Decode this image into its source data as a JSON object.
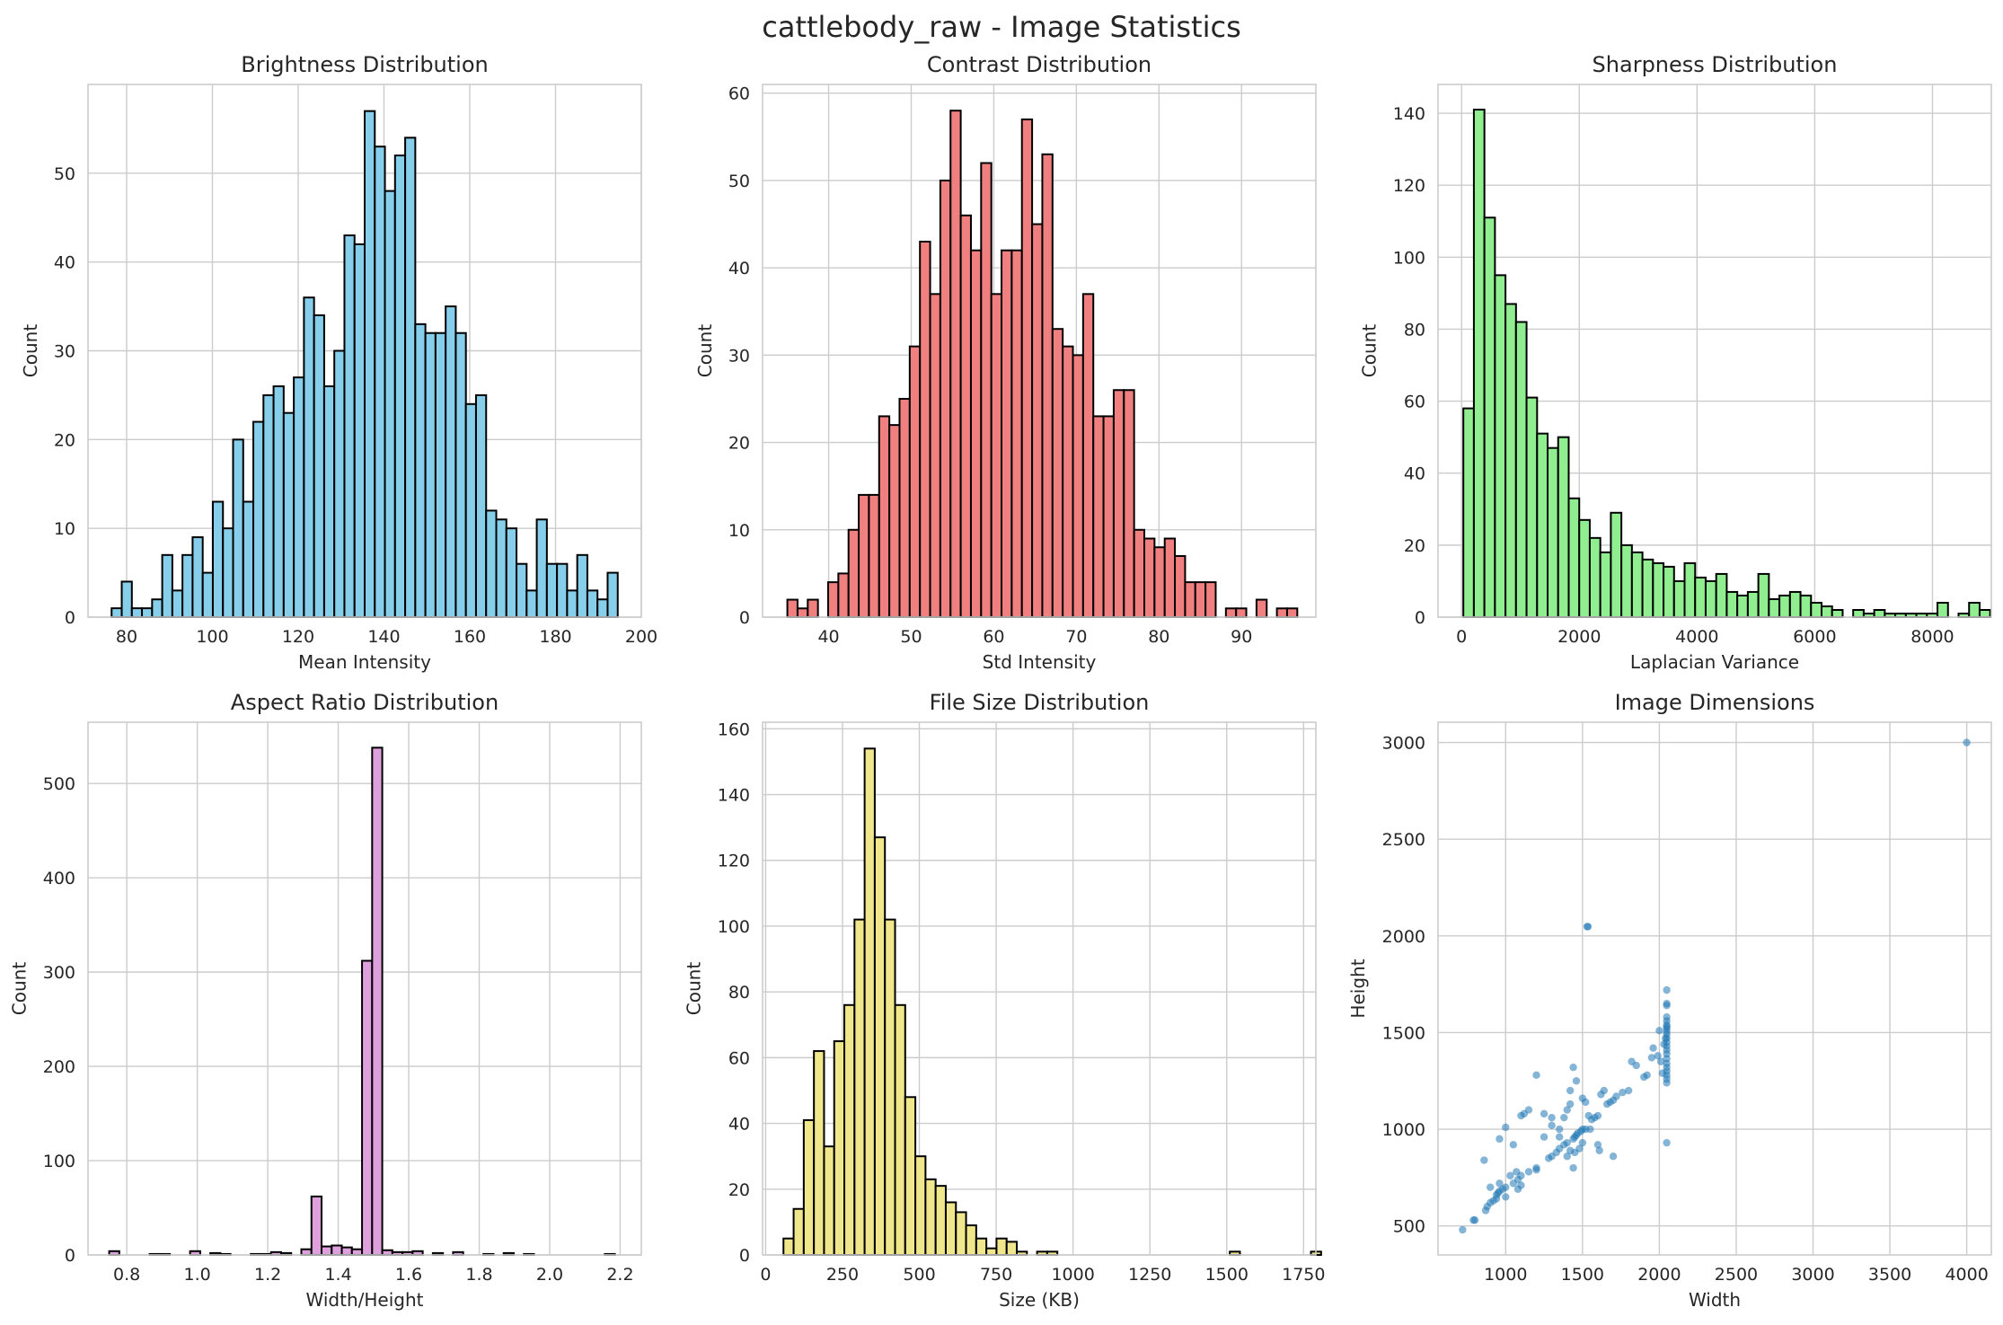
{
  "figure": {
    "title": "cattlebody_raw - Image Statistics"
  },
  "chart_data": [
    {
      "id": "brightness",
      "type": "bar",
      "title": "Brightness Distribution",
      "xlabel": "Mean Intensity",
      "ylabel": "Count",
      "color": "#87ceeb",
      "grid": true,
      "xlim": [
        71,
        200
      ],
      "ylim": [
        0,
        60
      ],
      "xticks": [
        80,
        100,
        120,
        140,
        160,
        180,
        200
      ],
      "yticks": [
        0,
        10,
        20,
        30,
        40,
        50
      ],
      "bin_start": 76.5,
      "bin_width": 2.36,
      "values": [
        1,
        4,
        1,
        1,
        2,
        7,
        3,
        7,
        9,
        5,
        13,
        10,
        20,
        13,
        22,
        25,
        26,
        23,
        27,
        36,
        34,
        26,
        30,
        43,
        42,
        57,
        53,
        48,
        52,
        54,
        33,
        32,
        32,
        35,
        32,
        24,
        25,
        12,
        11,
        10,
        6,
        3,
        11,
        6,
        6,
        3,
        7,
        3,
        2,
        5
      ]
    },
    {
      "id": "contrast",
      "type": "bar",
      "title": "Contrast Distribution",
      "xlabel": "Std Intensity",
      "ylabel": "Count",
      "color": "#f08080",
      "grid": true,
      "xlim": [
        32,
        99
      ],
      "ylim": [
        0,
        61
      ],
      "xticks": [
        40,
        50,
        60,
        70,
        80,
        90
      ],
      "yticks": [
        0,
        10,
        20,
        30,
        40,
        50,
        60
      ],
      "bin_start": 35,
      "bin_width": 1.235,
      "values": [
        2,
        1,
        2,
        0,
        4,
        5,
        10,
        14,
        14,
        23,
        22,
        25,
        31,
        43,
        37,
        50,
        58,
        46,
        42,
        52,
        37,
        42,
        42,
        57,
        45,
        53,
        33,
        31,
        30,
        37,
        23,
        23,
        26,
        26,
        10,
        9,
        8,
        9,
        7,
        4,
        4,
        4,
        0,
        1,
        1,
        0,
        2,
        0,
        1,
        1
      ]
    },
    {
      "id": "sharpness",
      "type": "bar",
      "title": "Sharpness Distribution",
      "xlabel": "Laplacian Variance",
      "ylabel": "Count",
      "color": "#90ee90",
      "grid": true,
      "xlim": [
        -400,
        9000
      ],
      "ylim": [
        0,
        148
      ],
      "xticks": [
        0,
        2000,
        4000,
        6000,
        8000
      ],
      "yticks": [
        0,
        20,
        40,
        60,
        80,
        100,
        120,
        140
      ],
      "bin_start": 30,
      "bin_width": 179,
      "values": [
        58,
        141,
        111,
        95,
        87,
        82,
        61,
        51,
        47,
        50,
        33,
        27,
        22,
        18,
        29,
        20,
        18,
        16,
        15,
        14,
        10,
        15,
        11,
        10,
        12,
        7,
        6,
        7,
        12,
        5,
        6,
        7,
        6,
        4,
        3,
        2,
        0,
        2,
        1,
        2,
        1,
        1,
        1,
        1,
        1,
        4,
        0,
        1,
        4,
        2
      ]
    },
    {
      "id": "aspect",
      "type": "bar",
      "title": "Aspect Ratio Distribution",
      "xlabel": "Width/Height",
      "ylabel": "Count",
      "color": "#dda0dd",
      "grid": true,
      "xlim": [
        0.69,
        2.26
      ],
      "ylim": [
        0,
        565
      ],
      "xticks": [
        0.8,
        1.0,
        1.2,
        1.4,
        1.6,
        1.8,
        2.0,
        2.2
      ],
      "xtick_labels": [
        "0.8",
        "1.0",
        "1.2",
        "1.4",
        "1.6",
        "1.8",
        "2.0",
        "2.2"
      ],
      "yticks": [
        0,
        100,
        200,
        300,
        400,
        500
      ],
      "bin_start": 0.75,
      "bin_width": 0.0287,
      "values": [
        4,
        0,
        0,
        0,
        1,
        1,
        0,
        0,
        4,
        0,
        2,
        1,
        0,
        0,
        1,
        1,
        3,
        2,
        0,
        6,
        62,
        9,
        10,
        8,
        6,
        312,
        538,
        5,
        3,
        3,
        4,
        0,
        2,
        0,
        3,
        0,
        0,
        1,
        0,
        2,
        0,
        1,
        0,
        0,
        0,
        0,
        0,
        0,
        0,
        1
      ]
    },
    {
      "id": "filesize",
      "type": "bar",
      "title": "File Size Distribution",
      "xlabel": "Size (KB)",
      "ylabel": "Count",
      "color": "#f0e68c",
      "grid": true,
      "xlim": [
        -10,
        1790
      ],
      "ylim": [
        0,
        162
      ],
      "xticks": [
        0,
        250,
        500,
        750,
        1000,
        1250,
        1500,
        1750
      ],
      "yticks": [
        0,
        20,
        40,
        60,
        80,
        100,
        120,
        140,
        160
      ],
      "bin_start": 58,
      "bin_width": 33,
      "values": [
        5,
        14,
        41,
        62,
        33,
        65,
        76,
        102,
        154,
        127,
        102,
        76,
        48,
        30,
        23,
        21,
        16,
        13,
        9,
        5,
        2,
        5,
        4,
        1,
        0,
        1,
        1,
        0,
        0,
        0,
        0,
        0,
        0,
        0,
        0,
        0,
        0,
        0,
        0,
        0,
        0,
        0,
        0,
        0,
        1,
        0,
        0,
        0,
        0,
        0,
        0,
        0,
        1
      ]
    },
    {
      "id": "dimensions",
      "type": "scatter",
      "title": "Image Dimensions",
      "xlabel": "Width",
      "ylabel": "Height",
      "color": "#1f77b4",
      "grid": true,
      "xlim": [
        560,
        4160
      ],
      "ylim": [
        350,
        3105
      ],
      "xticks": [
        1000,
        1500,
        2000,
        2500,
        3000,
        3500,
        4000
      ],
      "yticks": [
        500,
        1000,
        1500,
        2000,
        2500,
        3000
      ],
      "points": [
        [
          4000,
          3000
        ],
        [
          1530,
          2048
        ],
        [
          1536,
          2048
        ],
        [
          2048,
          1720
        ],
        [
          2048,
          1650
        ],
        [
          2048,
          1640
        ],
        [
          2048,
          1580
        ],
        [
          2048,
          1560
        ],
        [
          2048,
          1540
        ],
        [
          2048,
          1530
        ],
        [
          2048,
          1520
        ],
        [
          2048,
          1505
        ],
        [
          2048,
          1490
        ],
        [
          2048,
          1470
        ],
        [
          2048,
          1450
        ],
        [
          2048,
          1430
        ],
        [
          2048,
          1410
        ],
        [
          2048,
          1390
        ],
        [
          2048,
          1365
        ],
        [
          2048,
          1340
        ],
        [
          2048,
          1320
        ],
        [
          2048,
          1300
        ],
        [
          2048,
          1280
        ],
        [
          2048,
          1260
        ],
        [
          2048,
          1240
        ],
        [
          2048,
          930
        ],
        [
          2000,
          1510
        ],
        [
          2010,
          1350
        ],
        [
          2020,
          1290
        ],
        [
          2030,
          1440
        ],
        [
          2040,
          1470
        ],
        [
          1960,
          1420
        ],
        [
          1990,
          1380
        ],
        [
          1950,
          1370
        ],
        [
          1920,
          1280
        ],
        [
          1900,
          1270
        ],
        [
          1850,
          1330
        ],
        [
          1820,
          1350
        ],
        [
          1800,
          1200
        ],
        [
          1760,
          1190
        ],
        [
          1720,
          1170
        ],
        [
          1700,
          1150
        ],
        [
          1680,
          1140
        ],
        [
          1660,
          1130
        ],
        [
          1640,
          1200
        ],
        [
          1620,
          1180
        ],
        [
          1600,
          1070
        ],
        [
          1580,
          1060
        ],
        [
          1560,
          1050
        ],
        [
          1600,
          920
        ],
        [
          1610,
          890
        ],
        [
          1700,
          860
        ],
        [
          1550,
          1000
        ],
        [
          1520,
          1000
        ],
        [
          1500,
          1000
        ],
        [
          1490,
          990
        ],
        [
          1470,
          980
        ],
        [
          1460,
          970
        ],
        [
          1450,
          960
        ],
        [
          1440,
          950
        ],
        [
          1440,
          1320
        ],
        [
          1460,
          1250
        ],
        [
          1420,
          1200
        ],
        [
          1500,
          1160
        ],
        [
          1520,
          1140
        ],
        [
          1400,
          930
        ],
        [
          1380,
          920
        ],
        [
          1350,
          900
        ],
        [
          1330,
          880
        ],
        [
          1300,
          860
        ],
        [
          1280,
          850
        ],
        [
          1440,
          800
        ],
        [
          1450,
          880
        ],
        [
          1420,
          890
        ],
        [
          1400,
          860
        ],
        [
          1480,
          900
        ],
        [
          1500,
          930
        ],
        [
          1540,
          1070
        ],
        [
          1200,
          1280
        ],
        [
          1150,
          1100
        ],
        [
          1120,
          1080
        ],
        [
          1100,
          1070
        ],
        [
          1250,
          1080
        ],
        [
          1300,
          1060
        ],
        [
          1350,
          1000
        ],
        [
          1200,
          800
        ],
        [
          1200,
          790
        ],
        [
          1150,
          780
        ],
        [
          1100,
          760
        ],
        [
          1080,
          740
        ],
        [
          1050,
          720
        ],
        [
          1000,
          700
        ],
        [
          980,
          690
        ],
        [
          960,
          680
        ],
        [
          950,
          670
        ],
        [
          940,
          640
        ],
        [
          920,
          630
        ],
        [
          900,
          620
        ],
        [
          880,
          600
        ],
        [
          870,
          580
        ],
        [
          1000,
          1010
        ],
        [
          960,
          950
        ],
        [
          1050,
          920
        ],
        [
          1070,
          780
        ],
        [
          1030,
          760
        ],
        [
          1100,
          710
        ],
        [
          1080,
          690
        ],
        [
          1300,
          1020
        ],
        [
          1250,
          960
        ],
        [
          1350,
          960
        ],
        [
          1380,
          1060
        ],
        [
          1400,
          1100
        ],
        [
          1420,
          1130
        ],
        [
          860,
          840
        ],
        [
          800,
          530
        ],
        [
          790,
          530
        ],
        [
          720,
          480
        ],
        [
          960,
          720
        ],
        [
          940,
          660
        ],
        [
          1000,
          650
        ],
        [
          900,
          700
        ]
      ]
    }
  ]
}
